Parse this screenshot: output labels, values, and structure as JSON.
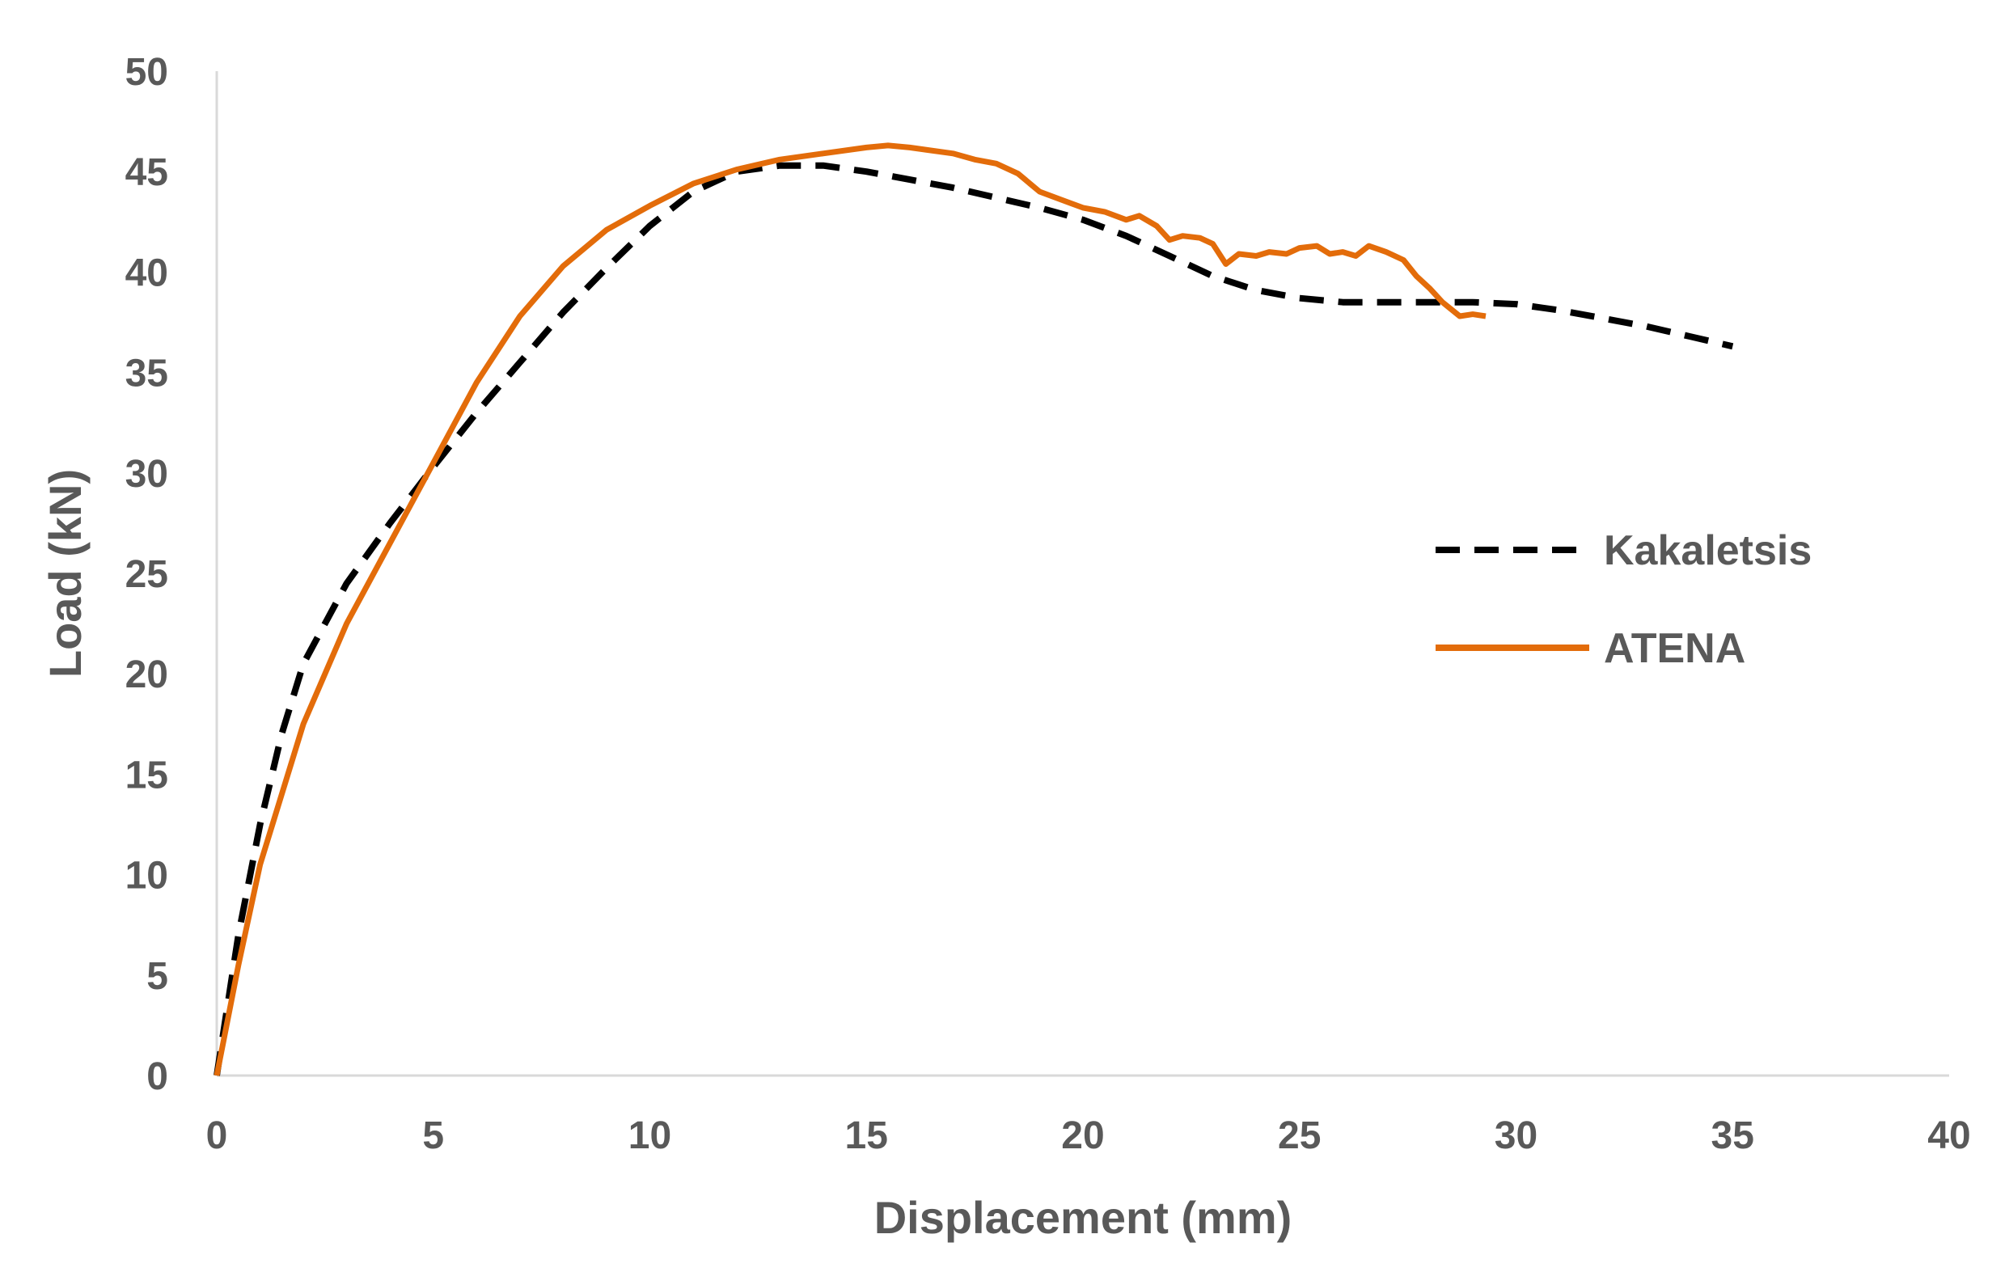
{
  "chart_data": {
    "type": "line",
    "title": "",
    "xlabel": "Displacement (mm)",
    "ylabel": "Load (kN)",
    "xlim": [
      0,
      40
    ],
    "ylim": [
      0,
      50
    ],
    "xticks": [
      0,
      5,
      10,
      15,
      20,
      25,
      30,
      35,
      40
    ],
    "yticks": [
      0,
      5,
      10,
      15,
      20,
      25,
      30,
      35,
      40,
      45,
      50
    ],
    "grid": false,
    "legend_position": "right-center",
    "series": [
      {
        "name": "Kakaletsis",
        "color": "#000000",
        "style": "dashed",
        "x": [
          0,
          0.5,
          1,
          1.5,
          2,
          3,
          4,
          5,
          6,
          7,
          8,
          9,
          10,
          11,
          12,
          13,
          14,
          15,
          16,
          17,
          18,
          19,
          20,
          21,
          22,
          23,
          24,
          25,
          26,
          27,
          28,
          29,
          30,
          31,
          32,
          33,
          34,
          35
        ],
        "y": [
          0,
          7,
          12.5,
          17,
          20.5,
          24.5,
          27.5,
          30.3,
          33,
          35.5,
          38,
          40.2,
          42.3,
          44,
          45,
          45.3,
          45.3,
          45,
          44.6,
          44.2,
          43.7,
          43.2,
          42.6,
          41.8,
          40.8,
          39.8,
          39.1,
          38.7,
          38.5,
          38.5,
          38.5,
          38.5,
          38.4,
          38.1,
          37.7,
          37.3,
          36.8,
          36.3
        ]
      },
      {
        "name": "ATENA",
        "color": "#E36C0A",
        "style": "solid",
        "x": [
          0,
          0.5,
          1,
          2,
          3,
          4,
          5,
          6,
          7,
          8,
          9,
          10,
          11,
          12,
          13,
          14,
          15,
          15.5,
          16,
          17,
          17.5,
          18,
          18.5,
          19,
          19.5,
          20,
          20.5,
          21,
          21.3,
          21.7,
          22,
          22.3,
          22.7,
          23,
          23.3,
          23.6,
          24,
          24.3,
          24.7,
          25,
          25.4,
          25.7,
          26,
          26.3,
          26.6,
          27,
          27.4,
          27.7,
          28,
          28.3,
          28.7,
          29,
          29.3
        ],
        "y": [
          0,
          5.5,
          10.5,
          17.5,
          22.5,
          26.5,
          30.5,
          34.5,
          37.8,
          40.3,
          42.1,
          43.3,
          44.4,
          45.1,
          45.6,
          45.9,
          46.2,
          46.3,
          46.2,
          45.9,
          45.6,
          45.4,
          44.9,
          44,
          43.6,
          43.2,
          43,
          42.6,
          42.8,
          42.3,
          41.6,
          41.8,
          41.7,
          41.4,
          40.4,
          40.9,
          40.8,
          41,
          40.9,
          41.2,
          41.3,
          40.9,
          41,
          40.8,
          41.3,
          41,
          40.6,
          39.8,
          39.2,
          38.5,
          37.8,
          37.9,
          37.8
        ]
      }
    ]
  }
}
